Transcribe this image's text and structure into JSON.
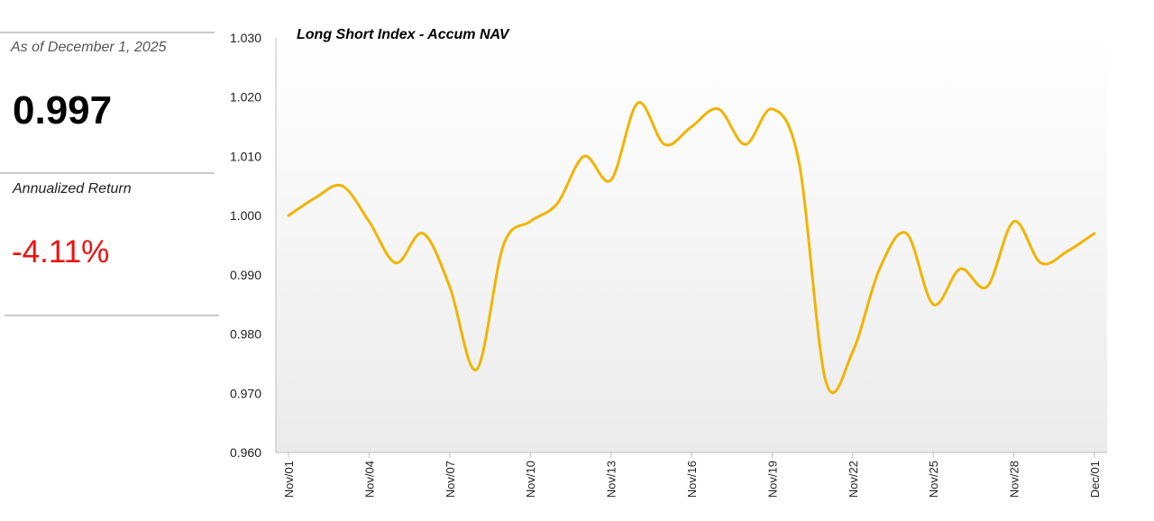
{
  "summary": {
    "as_of": "As of December 1, 2025",
    "nav_value": "0.997",
    "return_label": "Annualized Return",
    "return_value": "-4.11%",
    "return_color": "#ee1111"
  },
  "chart_data": {
    "type": "line",
    "title": "Long Short Index - Accum NAV",
    "xlabel": "",
    "ylabel": "",
    "ylim": [
      0.96,
      1.03
    ],
    "yticks": [
      "0.960",
      "0.970",
      "0.980",
      "0.990",
      "1.000",
      "1.010",
      "1.020",
      "1.030"
    ],
    "xtick_labels": [
      "Nov/01",
      "Nov/04",
      "Nov/07",
      "Nov/10",
      "Nov/13",
      "Nov/16",
      "Nov/19",
      "Nov/22",
      "Nov/25",
      "Nov/28",
      "Dec/01"
    ],
    "x": [
      "Nov/01",
      "Nov/02",
      "Nov/03",
      "Nov/04",
      "Nov/05",
      "Nov/06",
      "Nov/07",
      "Nov/08",
      "Nov/09",
      "Nov/10",
      "Nov/11",
      "Nov/12",
      "Nov/13",
      "Nov/14",
      "Nov/15",
      "Nov/16",
      "Nov/17",
      "Nov/18",
      "Nov/19",
      "Nov/20",
      "Nov/21",
      "Nov/22",
      "Nov/23",
      "Nov/24",
      "Nov/25",
      "Nov/26",
      "Nov/27",
      "Nov/28",
      "Nov/29",
      "Nov/30",
      "Dec/01"
    ],
    "series": [
      {
        "name": "",
        "color": "#f0b400",
        "values": [
          1.0,
          1.003,
          1.005,
          0.999,
          0.992,
          0.997,
          0.988,
          0.974,
          0.995,
          0.999,
          1.002,
          1.01,
          1.006,
          1.019,
          1.012,
          1.015,
          1.018,
          1.012,
          1.018,
          1.009,
          0.972,
          0.977,
          0.991,
          0.997,
          0.985,
          0.991,
          0.988,
          0.999,
          0.992,
          0.994,
          0.997
        ]
      }
    ],
    "grid": false,
    "legend": "none",
    "background": "light grey vertical gradient"
  }
}
